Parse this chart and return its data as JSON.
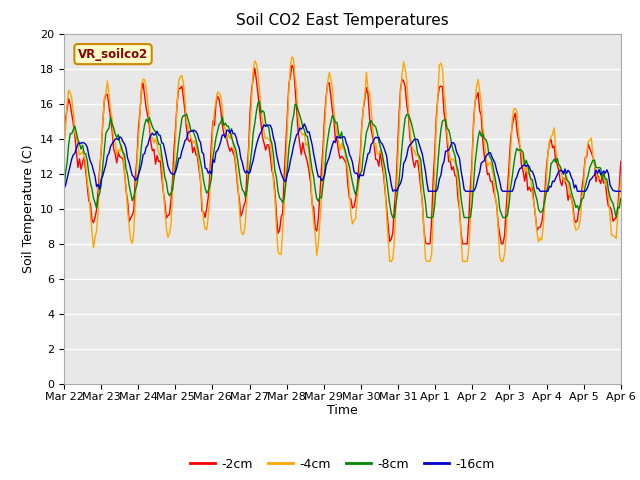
{
  "title": "Soil CO2 East Temperatures",
  "xlabel": "Time",
  "ylabel": "Soil Temperature (C)",
  "ylim": [
    0,
    20
  ],
  "yticks": [
    0,
    2,
    4,
    6,
    8,
    10,
    12,
    14,
    16,
    18,
    20
  ],
  "xtick_labels": [
    "Mar 22",
    "Mar 23",
    "Mar 24",
    "Mar 25",
    "Mar 26",
    "Mar 27",
    "Mar 28",
    "Mar 29",
    "Mar 30",
    "Mar 31",
    "Apr 1",
    "Apr 2",
    "Apr 3",
    "Apr 4",
    "Apr 5",
    "Apr 6"
  ],
  "legend_label": "VR_soilco2",
  "series_labels": [
    "-2cm",
    "-4cm",
    "-8cm",
    "-16cm"
  ],
  "series_colors": [
    "#ff0000",
    "#ffa500",
    "#008800",
    "#0000cc"
  ],
  "bg_color": "#e8e8e8",
  "title_fontsize": 11,
  "axis_fontsize": 9,
  "tick_fontsize": 8,
  "legend_fontsize": 9,
  "lw": 1.0
}
